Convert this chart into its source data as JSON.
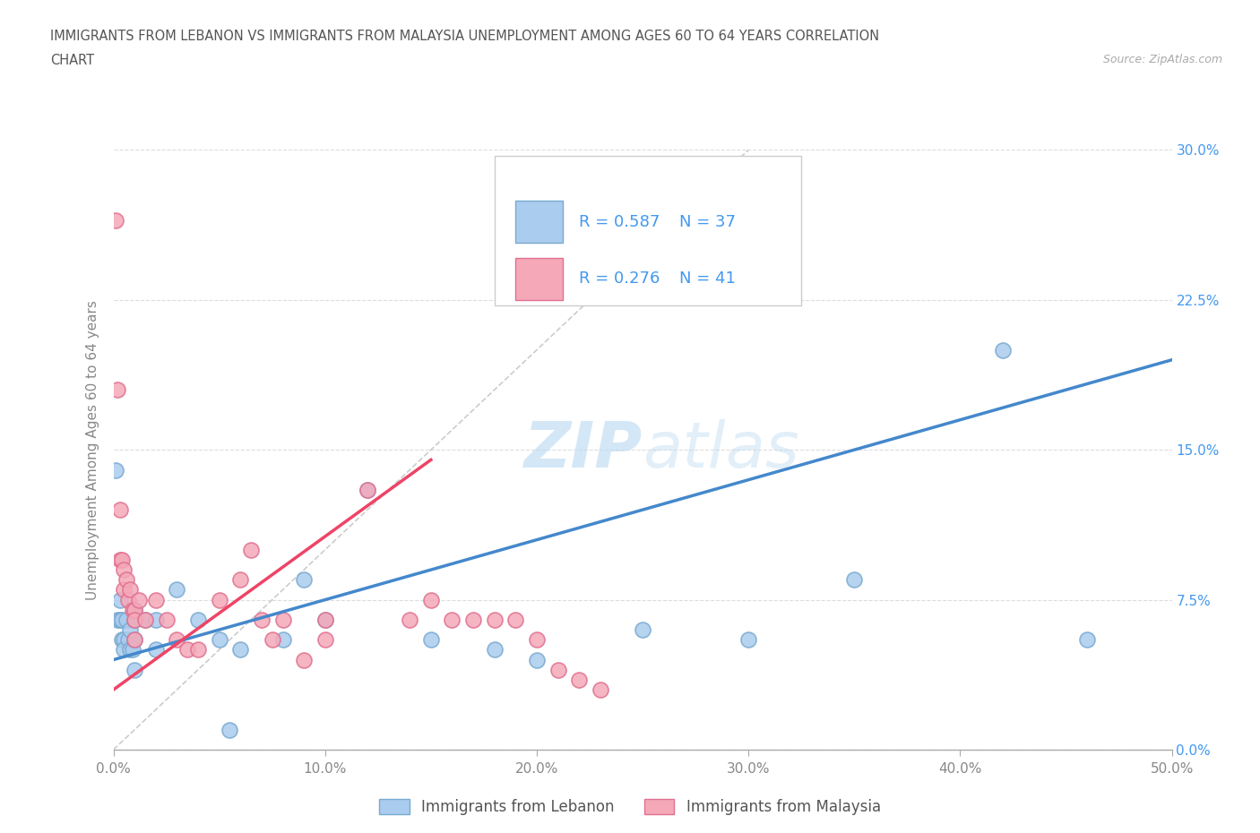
{
  "title_line1": "IMMIGRANTS FROM LEBANON VS IMMIGRANTS FROM MALAYSIA UNEMPLOYMENT AMONG AGES 60 TO 64 YEARS CORRELATION",
  "title_line2": "CHART",
  "source": "Source: ZipAtlas.com",
  "ylabel": "Unemployment Among Ages 60 to 64 years",
  "xmin": 0.0,
  "xmax": 0.5,
  "ymin": 0.0,
  "ymax": 0.3,
  "xticks": [
    0.0,
    0.1,
    0.2,
    0.3,
    0.4,
    0.5
  ],
  "xticklabels": [
    "0.0%",
    "10.0%",
    "20.0%",
    "30.0%",
    "40.0%",
    "50.0%"
  ],
  "yticks": [
    0.0,
    0.075,
    0.15,
    0.225,
    0.3
  ],
  "yticklabels": [
    "0.0%",
    "7.5%",
    "15.0%",
    "22.5%",
    "30.0%"
  ],
  "lebanon_color": "#aaccee",
  "malaysia_color": "#f4a8b8",
  "lebanon_edge": "#7aaad0",
  "malaysia_edge": "#e07090",
  "trend_lebanon_color": "#4488cc",
  "trend_malaysia_color": "#ee4466",
  "legend_r_color": "#4499ee",
  "legend_label_color": "#333333",
  "r_lebanon": "0.587",
  "n_lebanon": "37",
  "r_malaysia": "0.276",
  "n_malaysia": "41",
  "watermark_zip": "ZIP",
  "watermark_atlas": "atlas",
  "grid_color": "#dddddd",
  "axis_color": "#cccccc",
  "tick_label_color": "#4499ee",
  "ylabel_color": "#888888",
  "title_color": "#555555",
  "lebanon_x": [
    0.001,
    0.002,
    0.003,
    0.003,
    0.004,
    0.004,
    0.005,
    0.005,
    0.006,
    0.007,
    0.008,
    0.008,
    0.009,
    0.01,
    0.01,
    0.01,
    0.01,
    0.015,
    0.02,
    0.02,
    0.03,
    0.04,
    0.05,
    0.055,
    0.06,
    0.08,
    0.09,
    0.1,
    0.12,
    0.15,
    0.18,
    0.2,
    0.25,
    0.3,
    0.35,
    0.42,
    0.46
  ],
  "lebanon_y": [
    0.14,
    0.065,
    0.075,
    0.065,
    0.055,
    0.065,
    0.055,
    0.05,
    0.065,
    0.055,
    0.06,
    0.05,
    0.05,
    0.07,
    0.065,
    0.055,
    0.04,
    0.065,
    0.065,
    0.05,
    0.08,
    0.065,
    0.055,
    0.01,
    0.05,
    0.055,
    0.085,
    0.065,
    0.13,
    0.055,
    0.05,
    0.045,
    0.06,
    0.055,
    0.085,
    0.2,
    0.055
  ],
  "malaysia_x": [
    0.001,
    0.002,
    0.003,
    0.003,
    0.004,
    0.005,
    0.005,
    0.006,
    0.007,
    0.008,
    0.009,
    0.01,
    0.01,
    0.01,
    0.012,
    0.015,
    0.02,
    0.025,
    0.03,
    0.035,
    0.04,
    0.05,
    0.06,
    0.065,
    0.07,
    0.075,
    0.08,
    0.09,
    0.1,
    0.1,
    0.12,
    0.14,
    0.15,
    0.16,
    0.17,
    0.18,
    0.19,
    0.2,
    0.21,
    0.22,
    0.23
  ],
  "malaysia_y": [
    0.265,
    0.18,
    0.12,
    0.095,
    0.095,
    0.09,
    0.08,
    0.085,
    0.075,
    0.08,
    0.07,
    0.07,
    0.065,
    0.055,
    0.075,
    0.065,
    0.075,
    0.065,
    0.055,
    0.05,
    0.05,
    0.075,
    0.085,
    0.1,
    0.065,
    0.055,
    0.065,
    0.045,
    0.055,
    0.065,
    0.13,
    0.065,
    0.075,
    0.065,
    0.065,
    0.065,
    0.065,
    0.055,
    0.04,
    0.035,
    0.03
  ],
  "trend_leb_x0": 0.0,
  "trend_leb_x1": 0.5,
  "trend_leb_y0": 0.045,
  "trend_leb_y1": 0.195,
  "trend_mal_x0": 0.0,
  "trend_mal_x1": 0.15,
  "trend_mal_y0": 0.03,
  "trend_mal_y1": 0.145
}
